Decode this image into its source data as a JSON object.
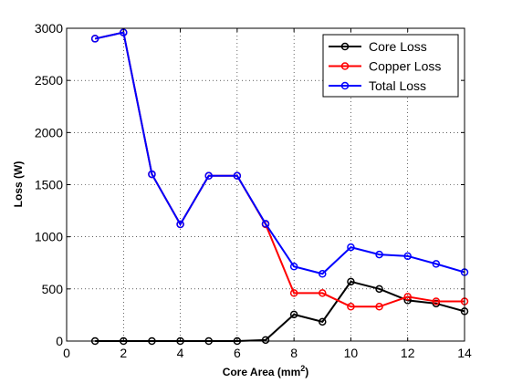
{
  "chart_data": {
    "type": "line",
    "title": "",
    "xlabel": "Core Area (mm",
    "xlabel_superscript": "2",
    "xlabel_suffix": ")",
    "ylabel": "Loss (W)",
    "xlim": [
      0,
      14
    ],
    "ylim": [
      0,
      3000
    ],
    "xticks": [
      0,
      2,
      4,
      6,
      8,
      10,
      12,
      14
    ],
    "yticks": [
      0,
      500,
      1000,
      1500,
      2000,
      2500,
      3000
    ],
    "grid": true,
    "grid_style": "dotted",
    "legend_position": "top-right",
    "x": [
      1,
      2,
      3,
      4,
      5,
      6,
      7,
      8,
      9,
      10,
      11,
      12,
      13,
      14
    ],
    "series": [
      {
        "name": "Core Loss",
        "color": "#000000",
        "marker": "circle",
        "values": [
          0,
          0,
          0,
          0,
          0,
          0,
          10,
          255,
          185,
          570,
          500,
          390,
          360,
          285
        ]
      },
      {
        "name": "Copper Loss",
        "color": "#ff0000",
        "marker": "circle",
        "values": [
          2900,
          2960,
          1600,
          1120,
          1585,
          1585,
          1120,
          460,
          460,
          330,
          330,
          425,
          380,
          380
        ]
      },
      {
        "name": "Total Loss",
        "color": "#0000ff",
        "marker": "circle",
        "values": [
          2900,
          2960,
          1600,
          1120,
          1585,
          1585,
          1125,
          715,
          645,
          900,
          830,
          815,
          740,
          660
        ]
      }
    ]
  }
}
